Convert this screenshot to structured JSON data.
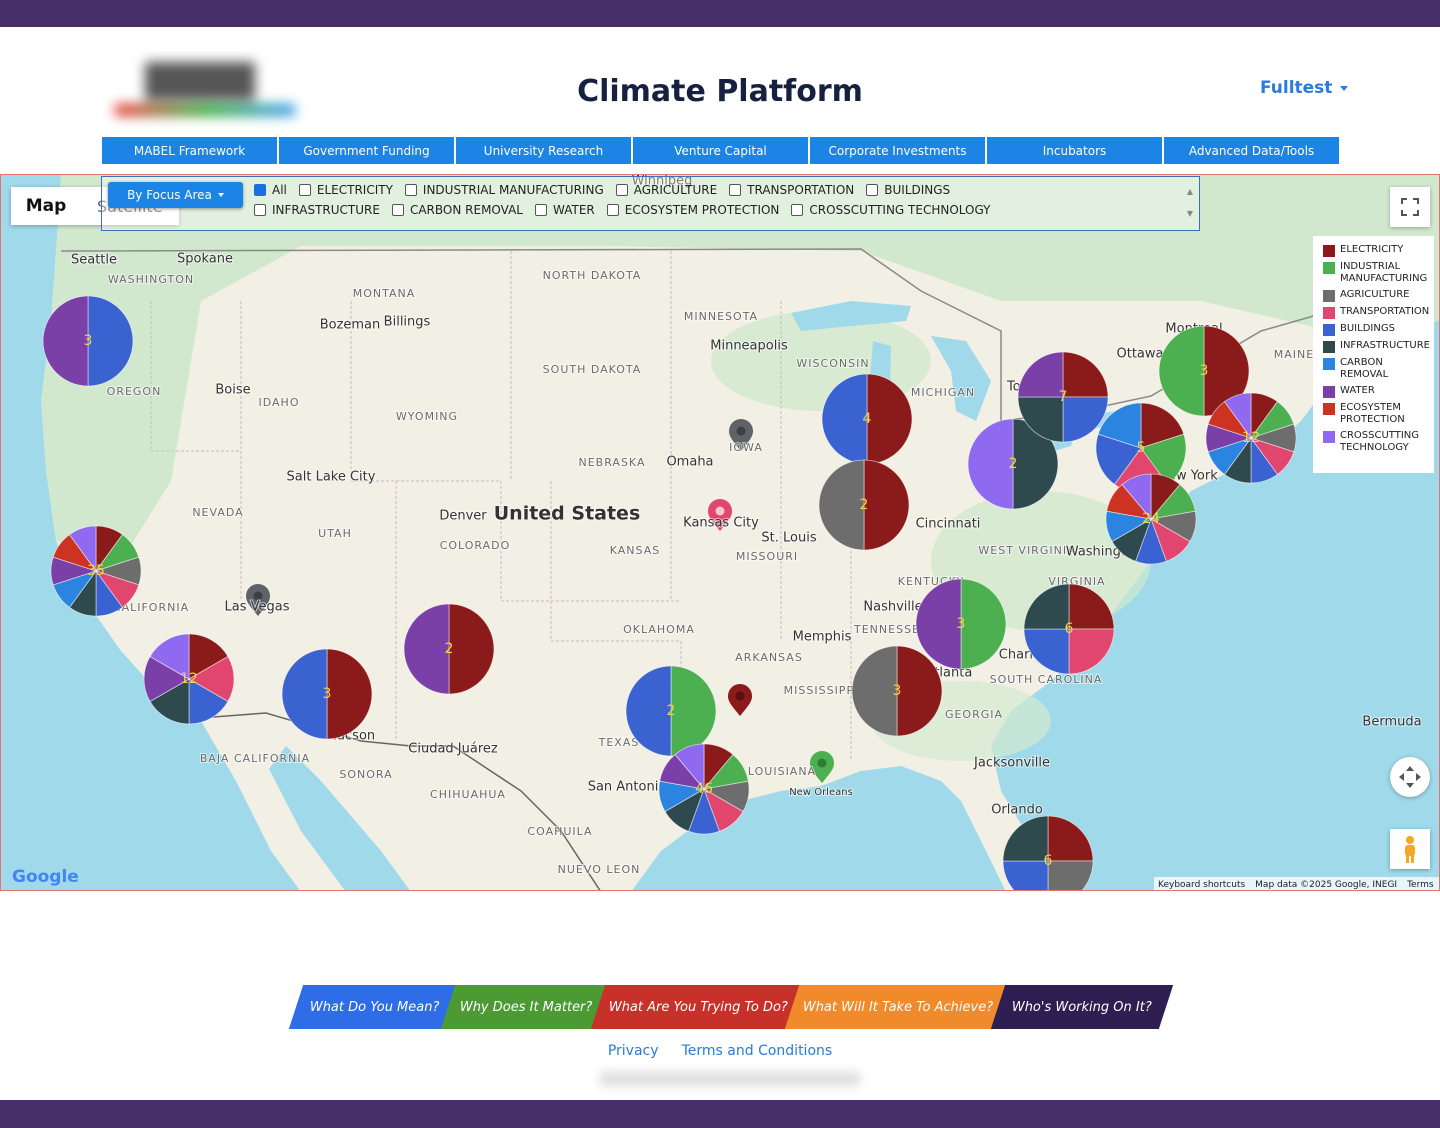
{
  "header": {
    "title": "Climate Platform",
    "user_menu": "Fulltest"
  },
  "nav": [
    "MABEL Framework",
    "Government Funding",
    "University Research",
    "Venture Capital",
    "Corporate Investments",
    "Incubators",
    "Advanced Data/Tools"
  ],
  "filter": {
    "button": "By Focus Area",
    "all": "All"
  },
  "focus_areas": [
    {
      "name": "ELECTRICITY",
      "color": "#8b1a1a"
    },
    {
      "name": "INDUSTRIAL MANUFACTURING",
      "color": "#4caf50"
    },
    {
      "name": "AGRICULTURE",
      "color": "#6d6d6d"
    },
    {
      "name": "TRANSPORTATION",
      "color": "#e0466e"
    },
    {
      "name": "BUILDINGS",
      "color": "#3a62d0"
    },
    {
      "name": "INFRASTRUCTURE",
      "color": "#2f4a4f"
    },
    {
      "name": "CARBON REMOVAL",
      "color": "#2b84e0"
    },
    {
      "name": "WATER",
      "color": "#7b3fa8"
    },
    {
      "name": "ECOSYSTEM PROTECTION",
      "color": "#cc3322"
    },
    {
      "name": "CROSSCUTTING TECHNOLOGY",
      "color": "#8f6af0"
    }
  ],
  "map": {
    "view_buttons": [
      "Map",
      "Satellite"
    ],
    "labels": [
      "Seattle",
      "Spokane",
      "WASHINGTON",
      "MONTANA",
      "Bozeman",
      "Billings",
      "NORTH DAKOTA",
      "MINNESOTA",
      "Minneapolis",
      "WISCONSIN",
      "MICHIGAN",
      "SOUTH DAKOTA",
      "OREGON",
      "Boise",
      "IDAHO",
      "WYOMING",
      "IOWA",
      "NEBRASKA",
      "Omaha",
      "Salt Lake City",
      "NEVADA",
      "UTAH",
      "Denver",
      "United States",
      "COLORADO",
      "KANSAS",
      "Kansas City",
      "St. Louis",
      "MISSOURI",
      "Cincinnati",
      "WEST VIRGINIA",
      "VIRGINIA",
      "KENTUCKY",
      "Nashville",
      "TENNESSEE",
      "Memphis",
      "OKLAHOMA",
      "ARKANSAS",
      "MISSISSIPPI",
      "GEORGIA",
      "SOUTH CAROLINA",
      "Las Vegas",
      "CALIFORNIA",
      "Tucson",
      "Ciudad Juárez",
      "TEXAS",
      "San Antonio",
      "LOUISIANA",
      "New Orleans",
      "Jacksonville",
      "Orlando",
      "BAJA CALIFORNIA",
      "SONORA",
      "CHIHUAHUA",
      "COAHUILA",
      "NUEVO LEON",
      "Ottawa",
      "Montreal",
      "MAINE",
      "Bermuda",
      "Winnipeg",
      "Charlotte",
      "Atlanta",
      "Washington",
      "Toronto",
      "New York"
    ],
    "clusters": [
      {
        "count": 3,
        "areas": [
          "BUILDINGS",
          "WATER"
        ]
      },
      {
        "count": 35,
        "areas": [
          "ELECTRICITY",
          "INDUSTRIAL MANUFACTURING",
          "AGRICULTURE",
          "TRANSPORTATION",
          "BUILDINGS",
          "INFRASTRUCTURE",
          "CARBON REMOVAL",
          "WATER",
          "ECOSYSTEM PROTECTION",
          "CROSSCUTTING TECHNOLOGY"
        ]
      },
      {
        "count": 12,
        "areas": [
          "ELECTRICITY",
          "TRANSPORTATION",
          "BUILDINGS",
          "INFRASTRUCTURE",
          "WATER",
          "CROSSCUTTING TECHNOLOGY"
        ]
      },
      {
        "count": 3,
        "areas": [
          "ELECTRICITY",
          "BUILDINGS"
        ]
      },
      {
        "count": 2,
        "areas": [
          "ELECTRICITY",
          "WATER"
        ]
      },
      {
        "count": 2,
        "areas": [
          "INDUSTRIAL MANUFACTURING",
          "BUILDINGS"
        ]
      },
      {
        "count": 46,
        "areas": [
          "ELECTRICITY",
          "INDUSTRIAL MANUFACTURING",
          "AGRICULTURE",
          "TRANSPORTATION",
          "BUILDINGS",
          "INFRASTRUCTURE",
          "CARBON REMOVAL",
          "WATER",
          "CROSSCUTTING TECHNOLOGY"
        ]
      },
      {
        "count": 4,
        "areas": [
          "ELECTRICITY",
          "BUILDINGS"
        ]
      },
      {
        "count": 2,
        "areas": [
          "ELECTRICITY",
          "AGRICULTURE"
        ]
      },
      {
        "count": 3,
        "areas": [
          "INDUSTRIAL MANUFACTURING",
          "WATER"
        ]
      },
      {
        "count": 3,
        "areas": [
          "ELECTRICITY",
          "AGRICULTURE"
        ]
      },
      {
        "count": 6,
        "areas": [
          "ELECTRICITY",
          "TRANSPORTATION",
          "BUILDINGS",
          "INFRASTRUCTURE"
        ]
      },
      {
        "count": 2,
        "areas": [
          "INFRASTRUCTURE",
          "CROSSCUTTING TECHNOLOGY"
        ]
      },
      {
        "count": 7,
        "areas": [
          "ELECTRICITY",
          "BUILDINGS",
          "INFRASTRUCTURE",
          "WATER"
        ]
      },
      {
        "count": 5,
        "areas": [
          "ELECTRICITY",
          "INDUSTRIAL MANUFACTURING",
          "TRANSPORTATION",
          "BUILDINGS",
          "CARBON REMOVAL"
        ]
      },
      {
        "count": 3,
        "areas": [
          "ELECTRICITY",
          "INDUSTRIAL MANUFACTURING"
        ]
      },
      {
        "count": 12,
        "areas": [
          "ELECTRICITY",
          "INDUSTRIAL MANUFACTURING",
          "AGRICULTURE",
          "TRANSPORTATION",
          "BUILDINGS",
          "INFRASTRUCTURE",
          "CARBON REMOVAL",
          "WATER",
          "ECOSYSTEM PROTECTION",
          "CROSSCUTTING TECHNOLOGY"
        ]
      },
      {
        "count": 24,
        "areas": [
          "ELECTRICITY",
          "INDUSTRIAL MANUFACTURING",
          "AGRICULTURE",
          "TRANSPORTATION",
          "BUILDINGS",
          "INFRASTRUCTURE",
          "CARBON REMOVAL",
          "ECOSYSTEM PROTECTION",
          "CROSSCUTTING TECHNOLOGY"
        ]
      },
      {
        "count": 6,
        "areas": [
          "ELECTRICITY",
          "AGRICULTURE",
          "BUILDINGS",
          "INFRASTRUCTURE"
        ]
      }
    ],
    "attribution": {
      "logo": "Google",
      "shortcuts": "Keyboard shortcuts",
      "data": "Map data ©2025 Google, INEGI",
      "terms": "Terms"
    }
  },
  "footer": {
    "tabs": [
      "What Do You Mean?",
      "Why Does It Matter?",
      "What Are You Trying To Do?",
      "What Will It Take To Achieve?",
      "Who's Working On It?"
    ],
    "links": [
      "Privacy",
      "Terms and Conditions"
    ]
  }
}
